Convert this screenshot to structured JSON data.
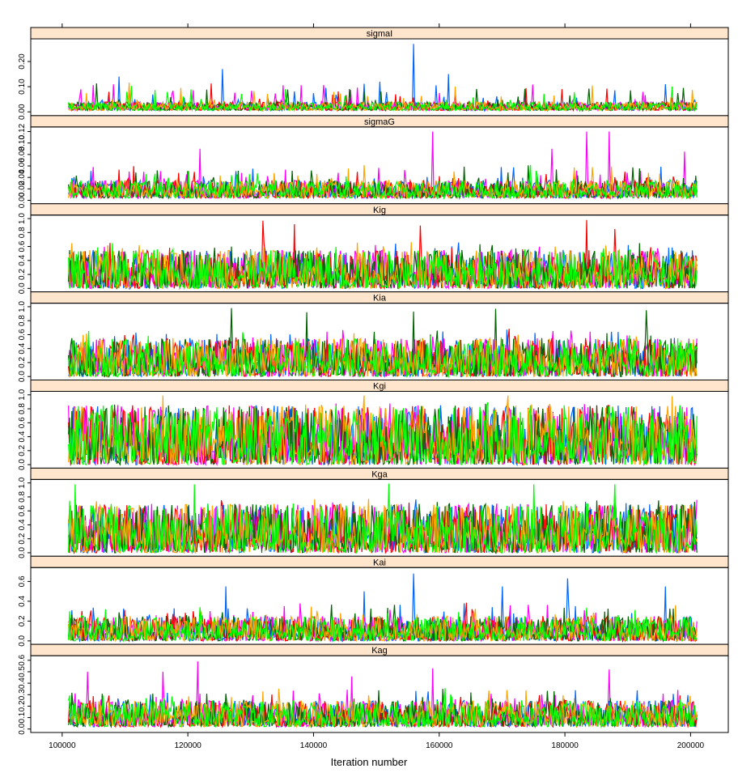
{
  "chart_data": {
    "type": "line",
    "xlabel": "Iteration number",
    "xlim": [
      95000,
      206000
    ],
    "x_range": [
      101000,
      201000
    ],
    "x_ticks": [
      100000,
      120000,
      140000,
      160000,
      180000,
      200000
    ],
    "x_tick_labels": [
      "100000",
      "120000",
      "140000",
      "160000",
      "180000",
      "200000"
    ],
    "series_colors": [
      "#0066ff",
      "#ff00ff",
      "#ff0000",
      "#006400",
      "#ffa500",
      "#00ff00"
    ],
    "strip_color": "#ffe5cc",
    "panels": [
      {
        "name": "sigmaI",
        "ylim": [
          -0.015,
          0.29
        ],
        "ticks": [
          0.0,
          0.1,
          0.2
        ],
        "tick_labels": [
          "0.00",
          "0.10",
          "0.20"
        ],
        "baseline": 0.006,
        "typical_max": 0.04,
        "spike_max": 0.27,
        "spikes": [
          [
            125500,
            0.17
          ],
          [
            156000,
            0.27
          ],
          [
            161500,
            0.15
          ],
          [
            150500,
            0.12
          ],
          [
            109000,
            0.14
          ],
          [
            196000,
            0.11
          ]
        ]
      },
      {
        "name": "sigmaG",
        "ylim": [
          -0.006,
          0.128
        ],
        "ticks": [
          0.0,
          0.02,
          0.04,
          0.06,
          0.08,
          0.1,
          0.12
        ],
        "tick_labels": [
          "0.00",
          "0.02",
          "0.04",
          "0.06",
          "0.08",
          "0.10",
          "0.12"
        ],
        "baseline": 0.004,
        "typical_max": 0.035,
        "spike_max": 0.12,
        "spikes": [
          [
            159000,
            0.12
          ],
          [
            183500,
            0.12
          ],
          [
            187000,
            0.12
          ],
          [
            178000,
            0.09
          ],
          [
            122000,
            0.09
          ],
          [
            199000,
            0.085
          ]
        ]
      },
      {
        "name": "Kig",
        "ylim": [
          -0.05,
          1.05
        ],
        "ticks": [
          0.0,
          0.2,
          0.4,
          0.6,
          0.8,
          1.0
        ],
        "tick_labels": [
          "0.0",
          "0.2",
          "0.4",
          "0.6",
          "0.8",
          "1.0"
        ],
        "baseline": 0.0,
        "typical_max": 0.55,
        "spike_max": 0.98,
        "spikes": [
          [
            132000,
            0.97
          ],
          [
            183500,
            0.98
          ],
          [
            137000,
            0.92
          ],
          [
            157000,
            0.9
          ],
          [
            188000,
            0.85
          ]
        ]
      },
      {
        "name": "Kia",
        "ylim": [
          -0.05,
          1.05
        ],
        "ticks": [
          0.0,
          0.2,
          0.4,
          0.6,
          0.8,
          1.0
        ],
        "tick_labels": [
          "0.0",
          "0.2",
          "0.4",
          "0.6",
          "0.8",
          "1.0"
        ],
        "baseline": 0.0,
        "typical_max": 0.55,
        "spike_max": 0.98,
        "spikes": [
          [
            127000,
            0.98
          ],
          [
            169000,
            0.97
          ],
          [
            193000,
            0.95
          ],
          [
            139000,
            0.92
          ],
          [
            156000,
            0.93
          ]
        ]
      },
      {
        "name": "Kgi",
        "ylim": [
          -0.05,
          1.05
        ],
        "ticks": [
          0.0,
          0.2,
          0.4,
          0.6,
          0.8,
          1.0
        ],
        "tick_labels": [
          "0.0",
          "0.2",
          "0.4",
          "0.6",
          "0.8",
          "1.0"
        ],
        "baseline": 0.0,
        "typical_max": 0.85,
        "spike_max": 0.99,
        "spikes": [
          [
            116000,
            0.99
          ],
          [
            148000,
            0.99
          ],
          [
            171000,
            0.99
          ],
          [
            197000,
            0.98
          ]
        ]
      },
      {
        "name": "Kga",
        "ylim": [
          -0.05,
          1.05
        ],
        "ticks": [
          0.0,
          0.2,
          0.4,
          0.6,
          0.8,
          1.0
        ],
        "tick_labels": [
          "0.0",
          "0.2",
          "0.4",
          "0.6",
          "0.8",
          "1.0"
        ],
        "baseline": 0.0,
        "typical_max": 0.7,
        "spike_max": 0.99,
        "spikes": [
          [
            102000,
            0.98
          ],
          [
            121000,
            0.98
          ],
          [
            152000,
            0.99
          ],
          [
            175000,
            0.98
          ],
          [
            188000,
            0.98
          ]
        ]
      },
      {
        "name": "Kai",
        "ylim": [
          -0.035,
          0.74
        ],
        "ticks": [
          0.0,
          0.2,
          0.4,
          0.6
        ],
        "tick_labels": [
          "0.0",
          "0.2",
          "0.4",
          "0.6"
        ],
        "baseline": 0.0,
        "typical_max": 0.25,
        "spike_max": 0.68,
        "spikes": [
          [
            156000,
            0.68
          ],
          [
            180500,
            0.63
          ],
          [
            126000,
            0.55
          ],
          [
            170000,
            0.55
          ],
          [
            196000,
            0.55
          ],
          [
            148000,
            0.5
          ]
        ]
      },
      {
        "name": "Kag",
        "ylim": [
          -0.03,
          0.64
        ],
        "ticks": [
          0.0,
          0.1,
          0.2,
          0.3,
          0.4,
          0.5,
          0.6
        ],
        "tick_labels": [
          "0.0",
          "0.1",
          "0.2",
          "0.3",
          "0.4",
          "0.5",
          "0.6"
        ],
        "baseline": 0.02,
        "typical_max": 0.25,
        "spike_max": 0.59,
        "spikes": [
          [
            121500,
            0.59
          ],
          [
            159000,
            0.53
          ],
          [
            104000,
            0.5
          ],
          [
            116000,
            0.5
          ],
          [
            187000,
            0.52
          ],
          [
            146000,
            0.46
          ]
        ]
      }
    ]
  }
}
